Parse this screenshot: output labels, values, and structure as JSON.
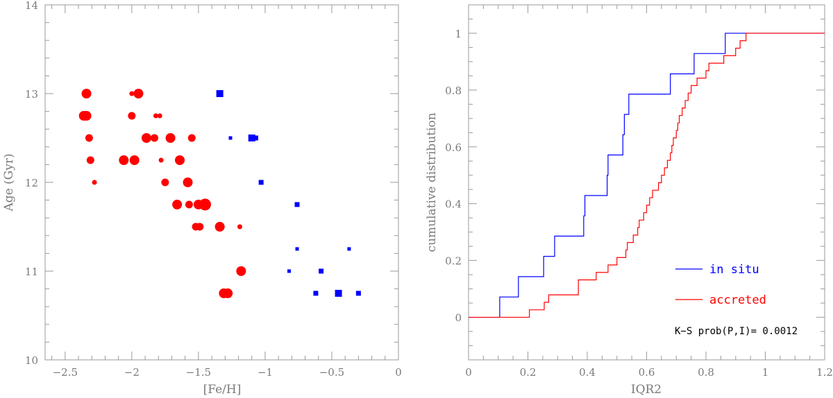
{
  "chart_data": [
    {
      "type": "scatter",
      "xlabel": "[Fe/H]",
      "ylabel": "Age (Gyr)",
      "xlim": [
        -2.65,
        0
      ],
      "ylim": [
        10,
        14
      ],
      "xticks": [
        -2.5,
        -2,
        -1.5,
        -1,
        -0.5,
        0
      ],
      "xticklabels": [
        "−2.5",
        "−2",
        "−1.5",
        "−1",
        "−0.5",
        "0"
      ],
      "yticks": [
        10,
        11,
        12,
        13,
        14
      ],
      "yticklabels": [
        "10",
        "11",
        "12",
        "13",
        "14"
      ],
      "series": [
        {
          "color": "#ff0000",
          "marker": "circle",
          "points": [
            {
              "x": -2.34,
              "y": 13.0,
              "size": 3
            },
            {
              "x": -1.95,
              "y": 13.0,
              "size": 3
            },
            {
              "x": -2.0,
              "y": 13.0,
              "size": 1
            },
            {
              "x": -2.36,
              "y": 12.75,
              "size": 3
            },
            {
              "x": -2.34,
              "y": 12.75,
              "size": 3
            },
            {
              "x": -2.0,
              "y": 12.75,
              "size": 2
            },
            {
              "x": -1.82,
              "y": 12.75,
              "size": 1
            },
            {
              "x": -1.79,
              "y": 12.75,
              "size": 1
            },
            {
              "x": -2.32,
              "y": 12.5,
              "size": 2
            },
            {
              "x": -1.89,
              "y": 12.5,
              "size": 3
            },
            {
              "x": -1.83,
              "y": 12.5,
              "size": 2
            },
            {
              "x": -1.71,
              "y": 12.5,
              "size": 3
            },
            {
              "x": -1.55,
              "y": 12.5,
              "size": 2
            },
            {
              "x": -2.31,
              "y": 12.25,
              "size": 2
            },
            {
              "x": -2.06,
              "y": 12.25,
              "size": 3
            },
            {
              "x": -1.98,
              "y": 12.25,
              "size": 3
            },
            {
              "x": -1.78,
              "y": 12.25,
              "size": 1
            },
            {
              "x": -1.64,
              "y": 12.25,
              "size": 3
            },
            {
              "x": -2.28,
              "y": 12.0,
              "size": 1
            },
            {
              "x": -1.75,
              "y": 12.0,
              "size": 2
            },
            {
              "x": -1.58,
              "y": 12.0,
              "size": 3
            },
            {
              "x": -1.66,
              "y": 11.75,
              "size": 3
            },
            {
              "x": -1.57,
              "y": 11.75,
              "size": 2
            },
            {
              "x": -1.5,
              "y": 11.75,
              "size": 3
            },
            {
              "x": -1.45,
              "y": 11.75,
              "size": 4
            },
            {
              "x": -1.52,
              "y": 11.5,
              "size": 2
            },
            {
              "x": -1.49,
              "y": 11.5,
              "size": 2
            },
            {
              "x": -1.34,
              "y": 11.5,
              "size": 3
            },
            {
              "x": -1.19,
              "y": 11.5,
              "size": 1
            },
            {
              "x": -1.18,
              "y": 11.0,
              "size": 3
            },
            {
              "x": -1.31,
              "y": 10.75,
              "size": 3
            },
            {
              "x": -1.28,
              "y": 10.75,
              "size": 3
            }
          ]
        },
        {
          "color": "#0000ff",
          "marker": "square",
          "points": [
            {
              "x": -1.34,
              "y": 13.0,
              "size": 3
            },
            {
              "x": -1.26,
              "y": 12.5,
              "size": 1
            },
            {
              "x": -1.1,
              "y": 12.5,
              "size": 3
            },
            {
              "x": -1.07,
              "y": 12.5,
              "size": 2
            },
            {
              "x": -1.03,
              "y": 12.0,
              "size": 2
            },
            {
              "x": -0.76,
              "y": 11.75,
              "size": 2
            },
            {
              "x": -0.76,
              "y": 11.25,
              "size": 1
            },
            {
              "x": -0.37,
              "y": 11.25,
              "size": 1
            },
            {
              "x": -0.82,
              "y": 11.0,
              "size": 1
            },
            {
              "x": -0.58,
              "y": 11.0,
              "size": 2
            },
            {
              "x": -0.62,
              "y": 10.75,
              "size": 2
            },
            {
              "x": -0.45,
              "y": 10.75,
              "size": 3
            },
            {
              "x": -0.3,
              "y": 10.75,
              "size": 2
            }
          ]
        }
      ]
    },
    {
      "type": "line",
      "xlabel": "IQR2",
      "ylabel": "cumulative distribution",
      "xlim": [
        0,
        1.2
      ],
      "ylim": [
        -0.15,
        1.1
      ],
      "xticks": [
        0,
        0.2,
        0.4,
        0.6,
        0.8,
        1,
        1.2
      ],
      "xticklabels": [
        "0",
        "0.2",
        "0.4",
        "0.6",
        "0.8",
        "1",
        "1.2"
      ],
      "yticks": [
        0,
        0.2,
        0.4,
        0.6,
        0.8,
        1
      ],
      "yticklabels": [
        "0",
        "0.2",
        "0.4",
        "0.6",
        "0.8",
        "1"
      ],
      "series": [
        {
          "name": "in situ",
          "color": "#0000ff",
          "steps_x": [
            0,
            0.105,
            0.168,
            0.253,
            0.29,
            0.388,
            0.392,
            0.467,
            0.47,
            0.52,
            0.525,
            0.528,
            0.54,
            0.68,
            0.76,
            0.865,
            1.2
          ],
          "steps_y": [
            0,
            0.0714,
            0.1429,
            0.2143,
            0.2857,
            0.3571,
            0.4286,
            0.5,
            0.5714,
            0.6429,
            0.7143,
            0.7143,
            0.7857,
            0.8571,
            0.9286,
            1.0,
            1.0
          ]
        },
        {
          "name": "accreted",
          "color": "#ff0000",
          "steps_x": [
            0,
            0.205,
            0.255,
            0.265,
            0.27,
            0.37,
            0.39,
            0.43,
            0.47,
            0.5,
            0.53,
            0.535,
            0.555,
            0.57,
            0.575,
            0.59,
            0.6,
            0.61,
            0.62,
            0.63,
            0.64,
            0.65,
            0.66,
            0.67,
            0.68,
            0.685,
            0.69,
            0.7,
            0.705,
            0.71,
            0.72,
            0.73,
            0.74,
            0.745,
            0.75,
            0.76,
            0.77,
            0.8,
            0.81,
            0.83,
            0.86,
            0.87,
            0.9,
            0.915,
            0.92,
            0.93,
            0.935,
            0.94,
            0.945,
            0.955,
            0.96,
            1.0,
            1.17,
            1.2
          ],
          "steps_y": [
            0,
            0.0263,
            0.0526,
            0.0526,
            0.0789,
            0.1316,
            0.1316,
            0.1579,
            0.1842,
            0.2105,
            0.2368,
            0.2632,
            0.2895,
            0.3158,
            0.3421,
            0.3684,
            0.3947,
            0.4211,
            0.4474,
            0.4474,
            0.4737,
            0.5,
            0.5263,
            0.5526,
            0.5789,
            0.6053,
            0.6316,
            0.6579,
            0.6842,
            0.7105,
            0.7368,
            0.7632,
            0.7895,
            0.7895,
            0.8158,
            0.8158,
            0.8421,
            0.8684,
            0.8947,
            0.8947,
            0.9211,
            0.9211,
            0.9474,
            0.9737,
            0.9737,
            0.9737,
            1.0,
            1.0,
            1.0,
            1.0,
            1.0,
            1.0,
            1.0,
            1.0
          ]
        }
      ],
      "legend": [
        {
          "label": "in situ",
          "color": "#0000ff"
        },
        {
          "label": "accreted",
          "color": "#ff0000"
        }
      ],
      "annotation": "K−S prob(P,I)= 0.0012"
    }
  ]
}
